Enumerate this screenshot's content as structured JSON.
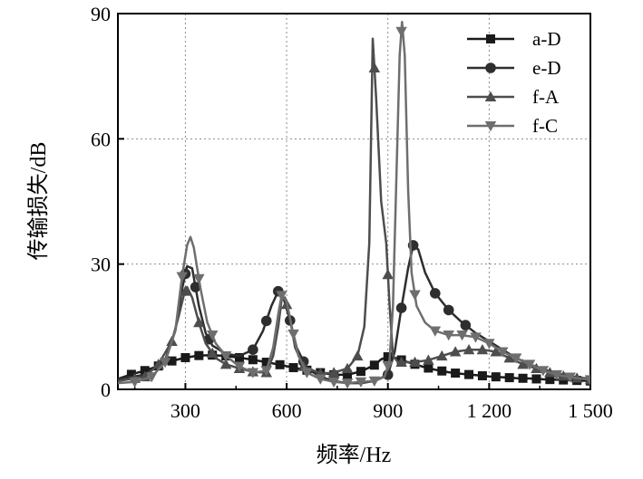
{
  "chart_data": {
    "type": "line",
    "xlabel": "频率/Hz",
    "ylabel": "传输损失/dB",
    "xlim": [
      100,
      1500
    ],
    "ylim": [
      0,
      90
    ],
    "x_ticks": [
      300,
      600,
      900,
      1200,
      1500
    ],
    "x_tick_labels": [
      "300",
      "600",
      "900",
      "1 200",
      "1 500"
    ],
    "y_ticks": [
      0,
      30,
      60,
      90
    ],
    "y_tick_labels": [
      "0",
      "30",
      "60",
      "90"
    ],
    "grid": "dotted vertical and horizontal at ticks",
    "legend_position": "top-right",
    "series": [
      {
        "name": "a-D",
        "marker": "square",
        "color": "#1a1a1a",
        "points": [
          [
            100,
            2.5
          ],
          [
            140,
            3.6
          ],
          [
            180,
            4.5
          ],
          [
            220,
            5.6
          ],
          [
            260,
            6.8
          ],
          [
            300,
            7.6
          ],
          [
            340,
            8.1
          ],
          [
            380,
            8.2
          ],
          [
            420,
            8.0
          ],
          [
            460,
            7.6
          ],
          [
            500,
            7.1
          ],
          [
            540,
            6.5
          ],
          [
            580,
            5.9
          ],
          [
            620,
            5.2
          ],
          [
            660,
            4.6
          ],
          [
            700,
            4.0
          ],
          [
            740,
            3.5
          ],
          [
            780,
            3.5
          ],
          [
            820,
            4.3
          ],
          [
            860,
            5.8
          ],
          [
            880,
            7.2
          ],
          [
            900,
            7.8
          ],
          [
            920,
            7.6
          ],
          [
            960,
            6.5
          ],
          [
            1000,
            5.5
          ],
          [
            1040,
            4.7
          ],
          [
            1080,
            4.1
          ],
          [
            1120,
            3.7
          ],
          [
            1160,
            3.4
          ],
          [
            1200,
            3.1
          ],
          [
            1240,
            2.9
          ],
          [
            1280,
            2.7
          ],
          [
            1320,
            2.6
          ],
          [
            1360,
            2.4
          ],
          [
            1400,
            2.3
          ],
          [
            1440,
            2.2
          ],
          [
            1500,
            2.0
          ]
        ],
        "marker_x": [
          140,
          180,
          220,
          260,
          300,
          340,
          380,
          420,
          460,
          500,
          540,
          580,
          620,
          660,
          700,
          740,
          780,
          820,
          860,
          900,
          940,
          980,
          1020,
          1060,
          1100,
          1140,
          1180,
          1220,
          1260,
          1300,
          1340,
          1380,
          1420,
          1460,
          1500
        ]
      },
      {
        "name": "e-D",
        "marker": "circle",
        "color": "#2e2e2e",
        "points": [
          [
            100,
            2.5
          ],
          [
            180,
            3.5
          ],
          [
            240,
            7.0
          ],
          [
            270,
            14.0
          ],
          [
            290,
            24.0
          ],
          [
            305,
            29.5
          ],
          [
            320,
            29.0
          ],
          [
            340,
            20.0
          ],
          [
            360,
            13.5
          ],
          [
            380,
            10.5
          ],
          [
            420,
            8.5
          ],
          [
            460,
            8.0
          ],
          [
            500,
            9.5
          ],
          [
            530,
            14.0
          ],
          [
            555,
            20.0
          ],
          [
            575,
            23.5
          ],
          [
            590,
            22.0
          ],
          [
            610,
            16.5
          ],
          [
            630,
            10.0
          ],
          [
            660,
            5.0
          ],
          [
            700,
            3.0
          ],
          [
            740,
            2.0
          ],
          [
            780,
            1.5
          ],
          [
            820,
            1.5
          ],
          [
            860,
            2.0
          ],
          [
            900,
            3.5
          ],
          [
            920,
            9.0
          ],
          [
            940,
            19.5
          ],
          [
            960,
            29.0
          ],
          [
            975,
            34.5
          ],
          [
            990,
            33.5
          ],
          [
            1010,
            28.0
          ],
          [
            1040,
            23.0
          ],
          [
            1080,
            19.0
          ],
          [
            1120,
            16.0
          ],
          [
            1160,
            13.5
          ],
          [
            1200,
            11.5
          ],
          [
            1240,
            9.5
          ],
          [
            1280,
            7.5
          ],
          [
            1320,
            6.0
          ],
          [
            1360,
            4.8
          ],
          [
            1400,
            3.8
          ],
          [
            1450,
            3.0
          ],
          [
            1500,
            2.5
          ]
        ],
        "marker_x": [
          300,
          330,
          370,
          500,
          540,
          575,
          610,
          650,
          900,
          940,
          975,
          1040,
          1080,
          1130
        ]
      },
      {
        "name": "f-A",
        "marker": "triangle-up",
        "color": "#4d4d4d",
        "points": [
          [
            100,
            2.0
          ],
          [
            180,
            3.0
          ],
          [
            220,
            6.0
          ],
          [
            260,
            11.5
          ],
          [
            280,
            17.5
          ],
          [
            295,
            22.5
          ],
          [
            305,
            24.5
          ],
          [
            320,
            22.0
          ],
          [
            340,
            16.0
          ],
          [
            360,
            11.0
          ],
          [
            390,
            7.5
          ],
          [
            420,
            6.0
          ],
          [
            460,
            5.0
          ],
          [
            500,
            4.2
          ],
          [
            540,
            4.0
          ],
          [
            560,
            8.0
          ],
          [
            575,
            15.0
          ],
          [
            585,
            21.5
          ],
          [
            595,
            22.0
          ],
          [
            610,
            17.0
          ],
          [
            625,
            10.0
          ],
          [
            650,
            5.5
          ],
          [
            700,
            3.8
          ],
          [
            740,
            4.0
          ],
          [
            780,
            5.0
          ],
          [
            810,
            8.0
          ],
          [
            830,
            15.0
          ],
          [
            845,
            35.0
          ],
          [
            855,
            84.0
          ],
          [
            865,
            70.0
          ],
          [
            880,
            45.0
          ],
          [
            895,
            35.0
          ],
          [
            905,
            20.0
          ],
          [
            915,
            8.0
          ],
          [
            930,
            6.5
          ],
          [
            980,
            6.5
          ],
          [
            1020,
            7.0
          ],
          [
            1060,
            8.0
          ],
          [
            1100,
            9.0
          ],
          [
            1140,
            9.5
          ],
          [
            1180,
            9.5
          ],
          [
            1220,
            9.0
          ],
          [
            1260,
            7.5
          ],
          [
            1300,
            6.0
          ],
          [
            1340,
            5.0
          ],
          [
            1380,
            4.0
          ],
          [
            1420,
            3.2
          ],
          [
            1460,
            2.7
          ],
          [
            1500,
            2.3
          ]
        ],
        "marker_x": [
          150,
          180,
          220,
          260,
          300,
          340,
          380,
          420,
          460,
          500,
          540,
          600,
          650,
          700,
          740,
          780,
          810,
          860,
          900,
          940,
          980,
          1020,
          1060,
          1100,
          1140,
          1180,
          1220,
          1260,
          1300,
          1340,
          1380,
          1420,
          1460,
          1500
        ]
      },
      {
        "name": "f-C",
        "marker": "triangle-down",
        "color": "#6e6e6e",
        "points": [
          [
            100,
            1.5
          ],
          [
            150,
            1.8
          ],
          [
            200,
            3.0
          ],
          [
            240,
            6.5
          ],
          [
            270,
            14.0
          ],
          [
            290,
            27.0
          ],
          [
            305,
            34.5
          ],
          [
            315,
            36.5
          ],
          [
            325,
            34.0
          ],
          [
            345,
            24.0
          ],
          [
            365,
            16.0
          ],
          [
            390,
            11.0
          ],
          [
            420,
            8.0
          ],
          [
            460,
            5.5
          ],
          [
            500,
            4.0
          ],
          [
            540,
            4.5
          ],
          [
            560,
            10.0
          ],
          [
            575,
            18.0
          ],
          [
            585,
            22.5
          ],
          [
            600,
            21.0
          ],
          [
            615,
            15.0
          ],
          [
            635,
            8.0
          ],
          [
            660,
            4.0
          ],
          [
            700,
            2.5
          ],
          [
            740,
            1.8
          ],
          [
            780,
            1.5
          ],
          [
            820,
            1.8
          ],
          [
            860,
            2.0
          ],
          [
            890,
            3.0
          ],
          [
            905,
            7.0
          ],
          [
            915,
            20.0
          ],
          [
            925,
            50.0
          ],
          [
            935,
            80.0
          ],
          [
            942,
            88.0
          ],
          [
            950,
            80.0
          ],
          [
            960,
            48.0
          ],
          [
            970,
            28.0
          ],
          [
            985,
            20.0
          ],
          [
            1010,
            16.0
          ],
          [
            1040,
            14.0
          ],
          [
            1080,
            13.0
          ],
          [
            1120,
            13.0
          ],
          [
            1160,
            12.5
          ],
          [
            1200,
            11.0
          ],
          [
            1240,
            9.0
          ],
          [
            1280,
            7.5
          ],
          [
            1320,
            6.0
          ],
          [
            1360,
            4.5
          ],
          [
            1400,
            3.5
          ],
          [
            1450,
            2.8
          ],
          [
            1500,
            2.3
          ]
        ],
        "marker_x": [
          150,
          200,
          240,
          290,
          340,
          380,
          420,
          460,
          500,
          540,
          585,
          620,
          660,
          700,
          740,
          780,
          820,
          860,
          900,
          940,
          980,
          1040,
          1080,
          1120,
          1160,
          1200,
          1240,
          1280,
          1320,
          1360,
          1400,
          1440,
          1500
        ]
      }
    ]
  }
}
